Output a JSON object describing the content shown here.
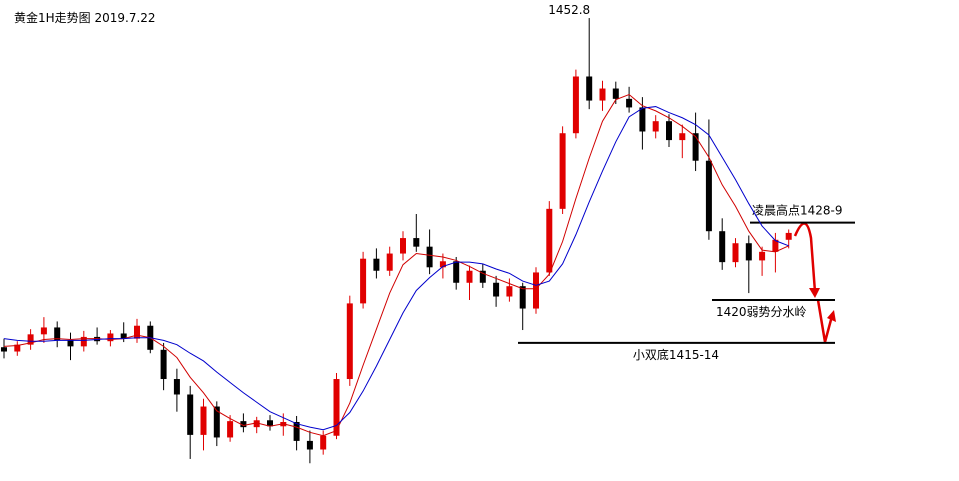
{
  "chart_data": {
    "type": "candlestick",
    "title": "黄金1H走势图 2019.7.22",
    "ylim": [
      1399.4,
      1454.9
    ],
    "up_color": "#e00000",
    "down_color": "#000000",
    "open": [
      1414.5,
      1414.0,
      1414.8,
      1416.0,
      1416.8,
      1415.3,
      1414.6,
      1415.7,
      1415.2,
      1416.1,
      1415.5,
      1417.0,
      1414.2,
      1410.8,
      1409.0,
      1404.3,
      1407.6,
      1404.0,
      1405.9,
      1405.2,
      1406.0,
      1405.3,
      1405.8,
      1403.6,
      1402.6,
      1404.2,
      1410.8,
      1419.6,
      1424.8,
      1423.4,
      1425.4,
      1427.2,
      1426.2,
      1423.8,
      1424.5,
      1422.0,
      1423.4,
      1422.0,
      1420.4,
      1421.6,
      1419.0,
      1423.2,
      1430.6,
      1439.4,
      1446.0,
      1443.2,
      1444.6,
      1443.4,
      1442.4,
      1439.6,
      1440.8,
      1438.6,
      1439.4,
      1436.2,
      1428.0,
      1424.4,
      1426.6,
      1424.6,
      1425.6,
      1427.0
    ],
    "high": [
      1415.5,
      1415.2,
      1416.6,
      1418.0,
      1417.5,
      1416.2,
      1416.4,
      1416.8,
      1416.5,
      1417.4,
      1417.8,
      1417.5,
      1415.0,
      1412.0,
      1410.0,
      1408.5,
      1408.2,
      1406.6,
      1406.8,
      1406.4,
      1406.6,
      1406.8,
      1406.5,
      1404.8,
      1404.8,
      1411.5,
      1420.5,
      1425.6,
      1426.0,
      1426.2,
      1428.0,
      1430.0,
      1428.2,
      1425.4,
      1425.0,
      1424.0,
      1424.2,
      1422.8,
      1422.5,
      1422.0,
      1423.8,
      1431.5,
      1440.2,
      1446.8,
      1452.8,
      1445.5,
      1445.4,
      1444.8,
      1443.6,
      1441.5,
      1441.6,
      1440.4,
      1441.8,
      1441.0,
      1429.5,
      1427.2,
      1427.5,
      1426.2,
      1427.8,
      1428.2
    ],
    "low": [
      1413.2,
      1413.5,
      1414.2,
      1415.0,
      1414.5,
      1413.0,
      1414.0,
      1414.8,
      1414.6,
      1415.1,
      1415.0,
      1413.8,
      1409.5,
      1407.0,
      1401.5,
      1402.5,
      1403.0,
      1403.5,
      1404.6,
      1404.5,
      1404.8,
      1404.2,
      1402.5,
      1401.0,
      1402.0,
      1403.8,
      1410.0,
      1419.0,
      1422.5,
      1422.8,
      1424.6,
      1425.6,
      1423.0,
      1422.5,
      1421.2,
      1420.0,
      1421.4,
      1419.2,
      1419.8,
      1416.5,
      1418.4,
      1422.8,
      1430.0,
      1438.8,
      1442.2,
      1442.0,
      1442.8,
      1441.8,
      1437.5,
      1438.8,
      1437.8,
      1436.5,
      1435.0,
      1427.0,
      1423.5,
      1423.8,
      1420.8,
      1422.8,
      1423.2,
      1426.0
    ],
    "close": [
      1414.0,
      1414.8,
      1416.0,
      1416.8,
      1415.3,
      1414.6,
      1415.7,
      1415.2,
      1416.1,
      1415.5,
      1417.0,
      1414.2,
      1410.8,
      1409.0,
      1404.3,
      1407.6,
      1404.0,
      1405.9,
      1405.2,
      1406.0,
      1405.3,
      1405.8,
      1403.6,
      1402.6,
      1404.2,
      1410.8,
      1419.6,
      1424.8,
      1423.4,
      1425.4,
      1427.2,
      1426.2,
      1423.8,
      1424.5,
      1422.0,
      1423.4,
      1422.0,
      1420.4,
      1421.6,
      1419.0,
      1423.2,
      1430.6,
      1439.4,
      1446.0,
      1443.2,
      1444.6,
      1443.4,
      1442.4,
      1439.6,
      1440.8,
      1438.6,
      1439.4,
      1436.2,
      1428.0,
      1424.4,
      1426.6,
      1424.6,
      1425.6,
      1427.0,
      1427.8
    ],
    "series": [
      {
        "color": "#d00000",
        "values": [
          1414.6,
          1414.7,
          1415.0,
          1415.4,
          1415.5,
          1415.4,
          1415.5,
          1415.5,
          1415.4,
          1415.5,
          1415.9,
          1415.6,
          1414.6,
          1413.3,
          1411.0,
          1409.2,
          1407.1,
          1406.2,
          1405.4,
          1405.7,
          1405.3,
          1405.6,
          1405.2,
          1404.6,
          1404.2,
          1404.8,
          1408.0,
          1412.4,
          1416.6,
          1420.8,
          1424.1,
          1425.4,
          1425.2,
          1425.0,
          1424.6,
          1423.9,
          1423.1,
          1422.5,
          1421.9,
          1421.3,
          1421.3,
          1423.0,
          1426.8,
          1431.8,
          1436.5,
          1440.8,
          1443.3,
          1443.9,
          1442.6,
          1442.0,
          1441.2,
          1440.2,
          1439.0,
          1436.6,
          1433.4,
          1430.9,
          1428.0,
          1425.8,
          1425.6,
          1426.3
        ]
      },
      {
        "color": "#0000cc",
        "values": [
          1415.5,
          1415.3,
          1415.2,
          1415.2,
          1415.3,
          1415.3,
          1415.3,
          1415.4,
          1415.5,
          1415.5,
          1415.6,
          1415.6,
          1415.3,
          1414.8,
          1413.8,
          1412.9,
          1411.6,
          1410.4,
          1409.2,
          1408.1,
          1407.0,
          1406.3,
          1405.6,
          1405.2,
          1404.9,
          1405.4,
          1406.9,
          1409.4,
          1412.3,
          1415.4,
          1418.5,
          1421.1,
          1422.6,
          1423.9,
          1424.4,
          1424.4,
          1424.2,
          1423.6,
          1423.1,
          1422.2,
          1421.7,
          1422.2,
          1424.2,
          1427.6,
          1431.4,
          1435.0,
          1438.4,
          1441.3,
          1442.3,
          1442.5,
          1441.8,
          1441.2,
          1440.4,
          1439.2,
          1436.6,
          1434.0,
          1431.2,
          1428.6,
          1426.9,
          1426.3
        ]
      }
    ],
    "peak_label": "1452.8",
    "levels": [
      {
        "value": 1429,
        "label": "凌晨高点1428-9"
      },
      {
        "value": 1420,
        "label": "1420弱势分水岭"
      },
      {
        "value": 1415,
        "label": "小双底1415-14"
      }
    ]
  }
}
